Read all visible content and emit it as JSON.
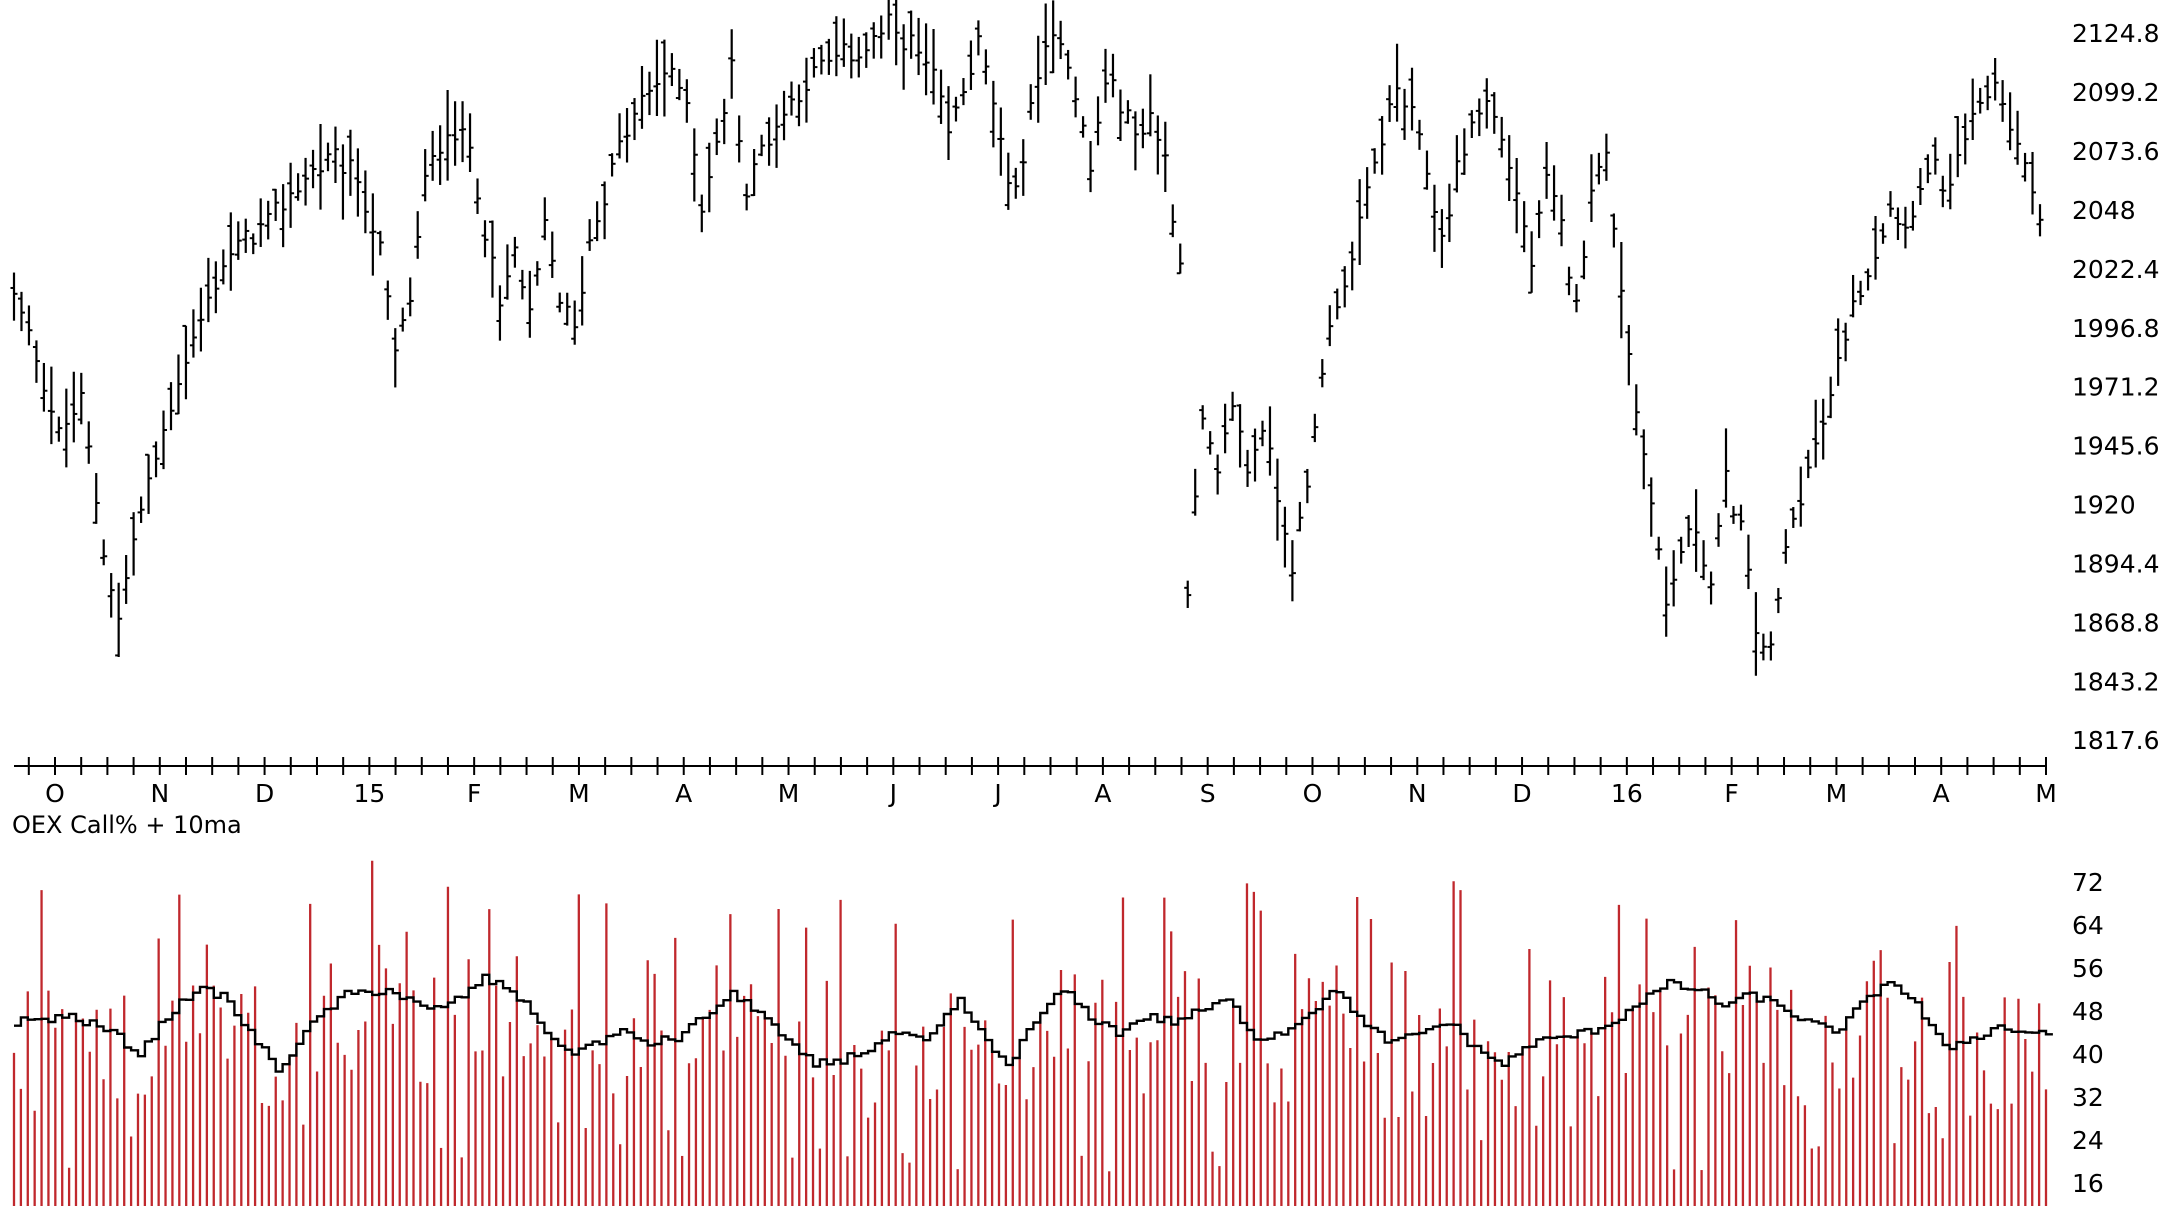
{
  "colors": {
    "background": "#ffffff",
    "price_bars": "#000000",
    "volume_bars": "#c0282d",
    "moving_average": "#000000",
    "axis": "#000000"
  },
  "chart_data": [
    {
      "type": "ohlc",
      "panel": "price",
      "title": "",
      "y_tick_labels": [
        "2124.8",
        "2099.2",
        "2073.6",
        "2048",
        "2022.4",
        "1996.8",
        "1971.2",
        "1945.6",
        "1920",
        "1894.4",
        "1868.8",
        "1843.2",
        "1817.6"
      ],
      "ylim": [
        1809,
        2134
      ],
      "x_tick_labels": [
        "O",
        "N",
        "D",
        "15",
        "F",
        "M",
        "A",
        "M",
        "J",
        "J",
        "A",
        "S",
        "O",
        "N",
        "D",
        "16",
        "F",
        "M",
        "A",
        "M"
      ],
      "x_label_months_index": [
        0,
        1,
        2,
        3,
        4,
        5,
        6,
        7,
        8,
        9,
        10,
        11,
        12,
        13,
        14,
        15,
        16,
        17,
        18,
        19
      ],
      "grid": false,
      "series": [
        {
          "approx_close_path": [
            [
              0,
              2010
            ],
            [
              3,
              1985
            ],
            [
              6,
              1950
            ],
            [
              9,
              1965
            ],
            [
              12,
              1900
            ],
            [
              14,
              1870
            ],
            [
              16,
              1905
            ],
            [
              19,
              1940
            ],
            [
              22,
              1975
            ],
            [
              25,
              2000
            ],
            [
              28,
              2025
            ],
            [
              31,
              2035
            ],
            [
              34,
              2042
            ],
            [
              37,
              2055
            ],
            [
              40,
              2065
            ],
            [
              43,
              2070
            ],
            [
              46,
              2062
            ],
            [
              49,
              2030
            ],
            [
              51,
              1985
            ],
            [
              53,
              2010
            ],
            [
              55,
              2060
            ],
            [
              58,
              2085
            ],
            [
              61,
              2075
            ],
            [
              63,
              2040
            ],
            [
              65,
              2005
            ],
            [
              67,
              2030
            ],
            [
              69,
              2000
            ],
            [
              71,
              2040
            ],
            [
              73,
              2010
            ],
            [
              75,
              1995
            ],
            [
              77,
              2035
            ],
            [
              79,
              2055
            ],
            [
              81,
              2075
            ],
            [
              84,
              2095
            ],
            [
              87,
              2108
            ],
            [
              90,
              2098
            ],
            [
              92,
              2050
            ],
            [
              94,
              2075
            ],
            [
              96,
              2110
            ],
            [
              98,
              2055
            ],
            [
              100,
              2075
            ],
            [
              102,
              2085
            ],
            [
              105,
              2100
            ],
            [
              108,
              2110
            ],
            [
              111,
              2115
            ],
            [
              114,
              2118
            ],
            [
              117,
              2128
            ],
            [
              120,
              2120
            ],
            [
              123,
              2105
            ],
            [
              125,
              2080
            ],
            [
              127,
              2100
            ],
            [
              129,
              2120
            ],
            [
              131,
              2095
            ],
            [
              133,
              2055
            ],
            [
              135,
              2070
            ],
            [
              137,
              2110
            ],
            [
              140,
              2125
            ],
            [
              142,
              2100
            ],
            [
              144,
              2065
            ],
            [
              146,
              2105
            ],
            [
              148,
              2095
            ],
            [
              150,
              2080
            ],
            [
              152,
              2090
            ],
            [
              154,
              2070
            ],
            [
              156,
              2025
            ],
            [
              157,
              1885
            ],
            [
              159,
              1955
            ],
            [
              161,
              1930
            ],
            [
              163,
              1965
            ],
            [
              165,
              1935
            ],
            [
              167,
              1955
            ],
            [
              169,
              1925
            ],
            [
              171,
              1895
            ],
            [
              173,
              1925
            ],
            [
              175,
              1980
            ],
            [
              177,
              2010
            ],
            [
              179,
              2025
            ],
            [
              181,
              2055
            ],
            [
              183,
              2080
            ],
            [
              185,
              2100
            ],
            [
              187,
              2088
            ],
            [
              189,
              2065
            ],
            [
              191,
              2035
            ],
            [
              193,
              2065
            ],
            [
              195,
              2085
            ],
            [
              197,
              2095
            ],
            [
              199,
              2080
            ],
            [
              201,
              2055
            ],
            [
              203,
              2025
            ],
            [
              205,
              2060
            ],
            [
              207,
              2040
            ],
            [
              209,
              2005
            ],
            [
              211,
              2060
            ],
            [
              213,
              2070
            ],
            [
              215,
              2015
            ],
            [
              217,
              1960
            ],
            [
              219,
              1925
            ],
            [
              221,
              1875
            ],
            [
              223,
              1900
            ],
            [
              225,
              1910
            ],
            [
              227,
              1885
            ],
            [
              229,
              1930
            ],
            [
              231,
              1910
            ],
            [
              233,
              1865
            ],
            [
              235,
              1855
            ],
            [
              237,
              1900
            ],
            [
              239,
              1925
            ],
            [
              241,
              1945
            ],
            [
              243,
              1965
            ],
            [
              245,
              1995
            ],
            [
              247,
              2015
            ],
            [
              249,
              2030
            ],
            [
              251,
              2050
            ],
            [
              253,
              2040
            ],
            [
              255,
              2060
            ],
            [
              257,
              2065
            ],
            [
              259,
              2055
            ],
            [
              261,
              2080
            ],
            [
              263,
              2090
            ],
            [
              265,
              2105
            ],
            [
              267,
              2085
            ],
            [
              269,
              2065
            ],
            [
              271,
              2048
            ]
          ]
        }
      ]
    },
    {
      "type": "bar+line",
      "panel": "indicator",
      "title": "OEX Call% + 10ma",
      "y_tick_labels": [
        "72",
        "64",
        "56",
        "48",
        "40",
        "32",
        "24",
        "16"
      ],
      "ylim": [
        13,
        78
      ],
      "grid": false,
      "series": [
        {
          "name": "OEX Call%",
          "style": "bar",
          "approx_mean": 41,
          "approx_range": [
            17,
            76
          ]
        },
        {
          "name": "10ma",
          "style": "step-line",
          "approx_path": [
            [
              0,
              46
            ],
            [
              8,
              47
            ],
            [
              14,
              44
            ],
            [
              18,
              40
            ],
            [
              22,
              47
            ],
            [
              26,
              52
            ],
            [
              30,
              51
            ],
            [
              34,
              44
            ],
            [
              38,
              37
            ],
            [
              44,
              47
            ],
            [
              48,
              51
            ],
            [
              54,
              52
            ],
            [
              60,
              48
            ],
            [
              64,
              50
            ],
            [
              68,
              54
            ],
            [
              72,
              52
            ],
            [
              76,
              46
            ],
            [
              80,
              40
            ],
            [
              84,
              42
            ],
            [
              88,
              44
            ],
            [
              92,
              42
            ],
            [
              96,
              43
            ],
            [
              100,
              47
            ],
            [
              104,
              51
            ],
            [
              108,
              48
            ],
            [
              112,
              42
            ],
            [
              116,
              38
            ],
            [
              120,
              39
            ],
            [
              124,
              41
            ],
            [
              128,
              44
            ],
            [
              132,
              42
            ],
            [
              134,
              45
            ],
            [
              137,
              50
            ],
            [
              141,
              42
            ],
            [
              144,
              38
            ],
            [
              148,
              46
            ],
            [
              152,
              52
            ],
            [
              156,
              47
            ],
            [
              160,
              44
            ],
            [
              164,
              47
            ],
            [
              168,
              46
            ],
            [
              172,
              48
            ],
            [
              176,
              50
            ],
            [
              180,
              43
            ],
            [
              184,
              44
            ],
            [
              188,
              48
            ],
            [
              192,
              52
            ],
            [
              196,
              45
            ],
            [
              200,
              42
            ],
            [
              204,
              44
            ],
            [
              208,
              46
            ],
            [
              212,
              41
            ],
            [
              216,
              38
            ],
            [
              220,
              42
            ],
            [
              224,
              43
            ],
            [
              228,
              44
            ],
            [
              232,
              46
            ],
            [
              236,
              50
            ],
            [
              240,
              53
            ],
            [
              244,
              52
            ],
            [
              248,
              49
            ],
            [
              252,
              51
            ],
            [
              256,
              49
            ],
            [
              260,
              46
            ],
            [
              264,
              44
            ],
            [
              268,
              49
            ],
            [
              272,
              54
            ],
            [
              276,
              49
            ],
            [
              280,
              41
            ],
            [
              284,
              43
            ],
            [
              288,
              45
            ],
            [
              292,
              44
            ],
            [
              296,
              44
            ]
          ]
        }
      ]
    }
  ]
}
